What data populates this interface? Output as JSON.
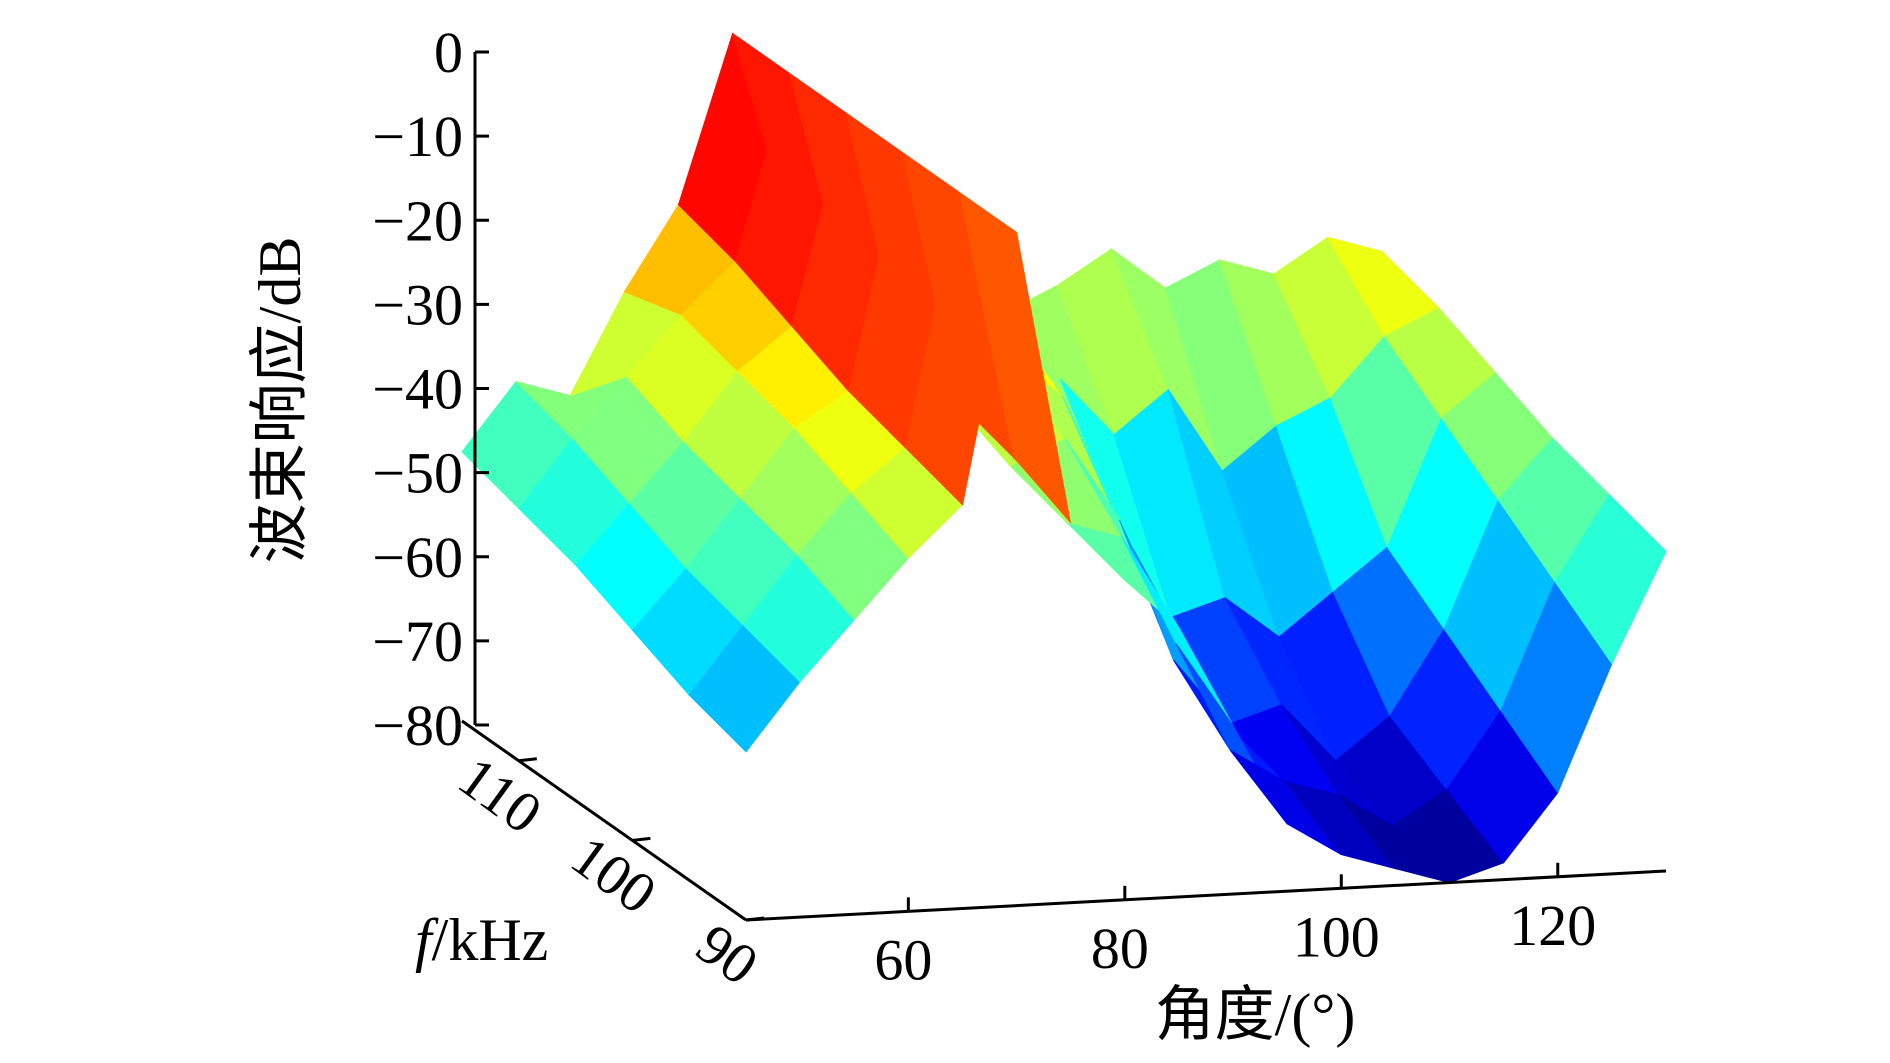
{
  "chart_data": {
    "type": "surface3d",
    "zlabel": "波束响应/dB",
    "xlabel": "角度/(°)",
    "ylabel_italic": "f",
    "ylabel_unit": "/kHz",
    "zlim": [
      -80,
      0
    ],
    "xlim": [
      45,
      130
    ],
    "ylim": [
      90,
      115
    ],
    "z_ticks": [
      0,
      -10,
      -20,
      -30,
      -40,
      -50,
      -60,
      -70,
      -80
    ],
    "z_tick_labels": [
      "0",
      "−10",
      "−20",
      "−30",
      "−40",
      "−50",
      "−60",
      "−70",
      "−80"
    ],
    "x_ticks": [
      60,
      80,
      100,
      120
    ],
    "x_tick_labels": [
      "60",
      "80",
      "100",
      "120"
    ],
    "y_ticks": [
      90,
      100,
      110
    ],
    "y_tick_labels": [
      "90",
      "100",
      "110"
    ],
    "colormap": "jet",
    "main_beam_angle": 70,
    "frequencies_kHz": [
      115,
      110,
      105,
      100,
      95,
      90
    ],
    "series": [
      {
        "frequency": 115,
        "angles": [
          45,
          50,
          55,
          60,
          65,
          70,
          75,
          80,
          85,
          90,
          95,
          100,
          105,
          110,
          115,
          120,
          125,
          130
        ],
        "values": [
          -48,
          -40,
          -42,
          -30,
          -20,
          0,
          -22,
          -30,
          -25,
          -28,
          -35,
          -32,
          -28,
          -33,
          -30,
          -32,
          -28,
          -30
        ]
      },
      {
        "frequency": 110,
        "angles": [
          45,
          50,
          55,
          60,
          65,
          70,
          75,
          80,
          85,
          90,
          95,
          100,
          105,
          110,
          115,
          120,
          125,
          130
        ],
        "values": [
          -50,
          -42,
          -35,
          -28,
          -22,
          0,
          -25,
          -32,
          -28,
          -30,
          -38,
          -45,
          -40,
          -50,
          -45,
          -42,
          -35,
          -32
        ]
      },
      {
        "frequency": 105,
        "angles": [
          45,
          50,
          55,
          60,
          65,
          70,
          75,
          80,
          85,
          90,
          95,
          100,
          105,
          110,
          115,
          120,
          125,
          130
        ],
        "values": [
          -52,
          -45,
          -38,
          -30,
          -25,
          0,
          -28,
          -35,
          -30,
          -35,
          -50,
          -62,
          -60,
          -65,
          -60,
          -55,
          -40,
          -35
        ]
      },
      {
        "frequency": 100,
        "angles": [
          45,
          50,
          55,
          60,
          65,
          70,
          75,
          80,
          85,
          90,
          95,
          100,
          105,
          110,
          115,
          120,
          125,
          130
        ],
        "values": [
          -55,
          -48,
          -40,
          -32,
          -28,
          0,
          -30,
          -38,
          -35,
          -45,
          -62,
          -70,
          -68,
          -75,
          -70,
          -60,
          -45,
          -38
        ]
      },
      {
        "frequency": 95,
        "angles": [
          45,
          50,
          55,
          60,
          65,
          70,
          75,
          80,
          85,
          90,
          95,
          100,
          105,
          110,
          115,
          120,
          125,
          130
        ],
        "values": [
          -58,
          -50,
          -42,
          -35,
          -30,
          0,
          -32,
          -40,
          -42,
          -55,
          -68,
          -72,
          -74,
          -78,
          -74,
          -65,
          -50,
          -40
        ]
      },
      {
        "frequency": 90,
        "angles": [
          45,
          50,
          55,
          60,
          65,
          70,
          75,
          80,
          85,
          90,
          95,
          100,
          105,
          110,
          115,
          120,
          125,
          130
        ],
        "values": [
          -60,
          -52,
          -45,
          -38,
          -32,
          0,
          -35,
          -42,
          -48,
          -60,
          -72,
          -76,
          -78,
          -80,
          -78,
          -70,
          -55,
          -42
        ]
      }
    ]
  }
}
